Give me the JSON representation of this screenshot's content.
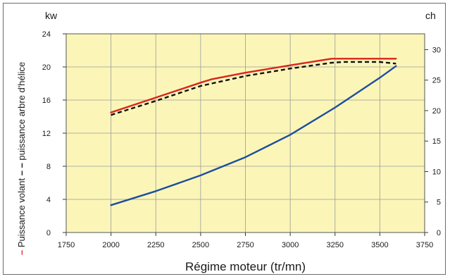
{
  "chart_data": {
    "type": "line",
    "xlabel": "Régime moteur (tr/mn)",
    "ylabel_left_unit": "kw",
    "ylabel_right_unit": "ch",
    "xlim": [
      1750,
      3750
    ],
    "ylim": [
      0,
      24
    ],
    "ylim_right": [
      0,
      32.6
    ],
    "x_ticks": [
      1750,
      2000,
      2250,
      2500,
      2750,
      3000,
      3250,
      3500,
      3750
    ],
    "y_ticks": [
      0,
      4,
      8,
      12,
      16,
      20,
      24
    ],
    "y_right_ticks": [
      0,
      5,
      10,
      15,
      20,
      25,
      30
    ],
    "grid": true,
    "background_color": "#fbf6b8",
    "legend_vertical": [
      {
        "label": "Puissance volant",
        "marker": "–",
        "color": "#d9251c"
      },
      {
        "label": "puissance arbre d'hélice",
        "marker": "– –",
        "color": "#111111"
      }
    ],
    "series": [
      {
        "name": "Puissance volant",
        "color": "#d9251c",
        "style": "solid",
        "x": [
          2000,
          2250,
          2500,
          2560,
          2750,
          3000,
          3230,
          3500,
          3590
        ],
        "y": [
          14.5,
          16.3,
          18.1,
          18.5,
          19.3,
          20.2,
          21.0,
          21.0,
          21.0
        ]
      },
      {
        "name": "puissance arbre d'hélice",
        "color": "#111111",
        "style": "dashed",
        "x": [
          2000,
          2250,
          2500,
          2750,
          3000,
          3230,
          3300,
          3500,
          3590
        ],
        "y": [
          14.2,
          15.9,
          17.7,
          18.9,
          19.8,
          20.5,
          20.6,
          20.6,
          20.4
        ]
      },
      {
        "name": "",
        "color": "#1d4e9e",
        "style": "solid",
        "x": [
          2000,
          2250,
          2500,
          2750,
          3000,
          3250,
          3500,
          3590
        ],
        "y": [
          3.3,
          5.0,
          6.9,
          9.1,
          11.8,
          15.1,
          18.7,
          20.1
        ]
      }
    ]
  }
}
